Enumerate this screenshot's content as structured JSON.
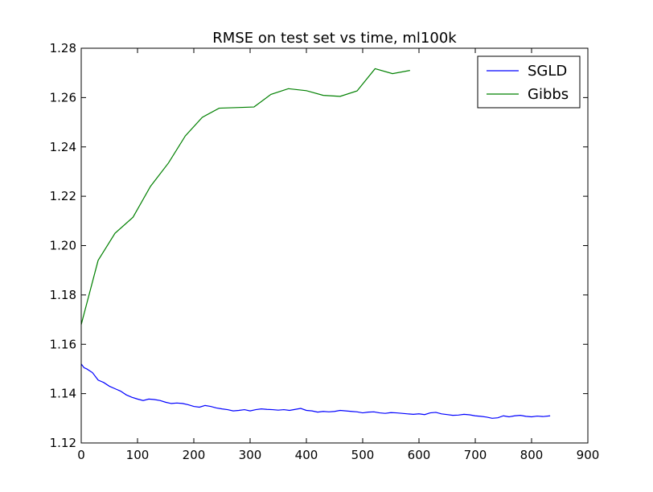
{
  "chart_data": {
    "type": "line",
    "title": "RMSE on test set vs time, ml100k",
    "xlabel": "",
    "ylabel": "",
    "xlim": [
      0,
      900
    ],
    "ylim": [
      1.12,
      1.28
    ],
    "xticks": [
      0,
      100,
      200,
      300,
      400,
      500,
      600,
      700,
      800,
      900
    ],
    "yticks": [
      1.12,
      1.14,
      1.16,
      1.18,
      1.2,
      1.22,
      1.24,
      1.26,
      1.28
    ],
    "xtick_labels": [
      "0",
      "100",
      "200",
      "300",
      "400",
      "500",
      "600",
      "700",
      "800",
      "900"
    ],
    "ytick_labels": [
      "1.12",
      "1.14",
      "1.16",
      "1.18",
      "1.20",
      "1.22",
      "1.24",
      "1.26",
      "1.28"
    ],
    "grid": false,
    "legend": "top-right",
    "series": [
      {
        "name": "SGLD",
        "color": "#0000ff",
        "x": [
          0,
          5,
          10,
          20,
          30,
          40,
          50,
          60,
          70,
          80,
          90,
          100,
          110,
          120,
          130,
          140,
          150,
          160,
          170,
          180,
          190,
          200,
          210,
          220,
          230,
          240,
          250,
          260,
          270,
          280,
          290,
          300,
          310,
          320,
          330,
          340,
          350,
          360,
          370,
          380,
          390,
          400,
          410,
          420,
          430,
          440,
          450,
          460,
          470,
          480,
          490,
          500,
          510,
          520,
          530,
          540,
          550,
          560,
          570,
          580,
          590,
          600,
          610,
          620,
          630,
          640,
          650,
          660,
          670,
          680,
          690,
          700,
          710,
          720,
          730,
          740,
          750,
          760,
          770,
          780,
          790,
          800,
          810,
          820,
          833
        ],
        "y": [
          1.152,
          1.1505,
          1.15,
          1.1485,
          1.1455,
          1.1445,
          1.143,
          1.142,
          1.141,
          1.1395,
          1.1385,
          1.1378,
          1.1372,
          1.1378,
          1.1376,
          1.1372,
          1.1365,
          1.136,
          1.1362,
          1.136,
          1.1355,
          1.1348,
          1.1345,
          1.1352,
          1.1348,
          1.1342,
          1.1338,
          1.1335,
          1.133,
          1.1332,
          1.1335,
          1.133,
          1.1335,
          1.1338,
          1.1336,
          1.1335,
          1.1333,
          1.1335,
          1.1332,
          1.1336,
          1.134,
          1.1332,
          1.133,
          1.1325,
          1.1328,
          1.1326,
          1.1328,
          1.1332,
          1.133,
          1.1328,
          1.1326,
          1.1322,
          1.1325,
          1.1326,
          1.1322,
          1.132,
          1.1323,
          1.1322,
          1.132,
          1.1318,
          1.1316,
          1.1318,
          1.1315,
          1.1322,
          1.1324,
          1.1318,
          1.1315,
          1.1312,
          1.1313,
          1.1316,
          1.1314,
          1.131,
          1.1308,
          1.1305,
          1.13,
          1.1302,
          1.131,
          1.1306,
          1.131,
          1.1312,
          1.1308,
          1.1306,
          1.1309,
          1.1307,
          1.131
        ]
      },
      {
        "name": "Gibbs",
        "color": "#008000",
        "x": [
          0,
          30,
          60,
          92,
          123,
          155,
          185,
          215,
          245,
          307,
          337,
          368,
          400,
          430,
          460,
          490,
          522,
          553,
          584
        ],
        "y": [
          1.168,
          1.194,
          1.205,
          1.2115,
          1.224,
          1.2335,
          1.2445,
          1.252,
          1.2557,
          1.2562,
          1.2613,
          1.2636,
          1.2628,
          1.2609,
          1.2605,
          1.2627,
          1.2717,
          1.2697,
          1.271
        ]
      }
    ]
  }
}
